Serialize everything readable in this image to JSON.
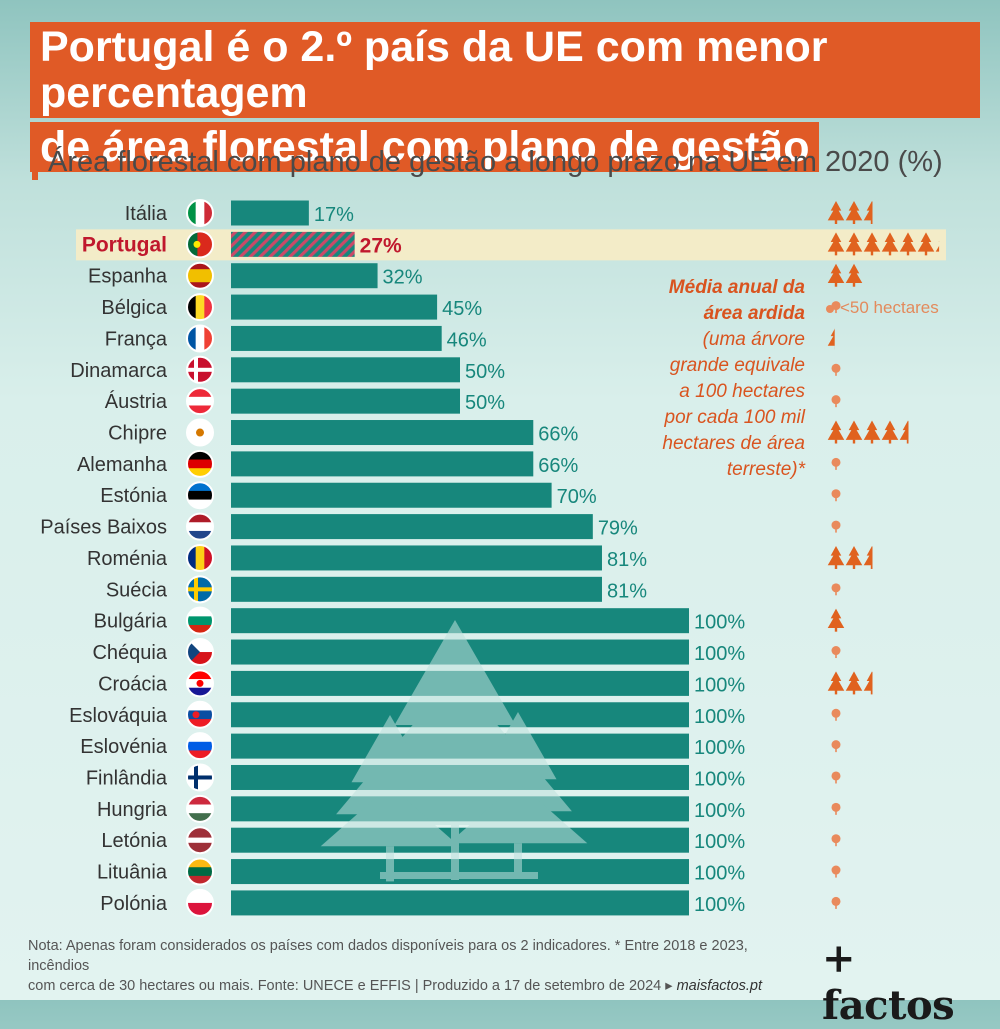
{
  "title": {
    "line1": "Portugal é o 2.º país da UE com menor percentagem",
    "line2": "de área florestal com plano de gestão"
  },
  "subtitle": "Área florestal com plano de gestão a longo prazo na UE em 2020 (%)",
  "side_note": {
    "head1": "Média anual da",
    "head2": "área ardida",
    "body": [
      "(uma árvore",
      "grande equivale",
      "a 100 hectares",
      "por cada 100 mil",
      "hectares de área",
      "terreste)*"
    ]
  },
  "legend_small": "<50 hectares",
  "footnote": {
    "line1": "Nota: Apenas foram considerados os países com dados disponíveis para os 2 indicadores. * Entre 2018 e 2023, incêndios",
    "line2": "com cerca de 30 hectares ou mais. Fonte: UNECE e EFFIS | Produzido a 17 de setembro de 2024 ▸",
    "site": "maisfactos.pt"
  },
  "logo": "+ factos",
  "colors": {
    "bar": "#17877c",
    "highlight_bar": "#17877c",
    "highlight_stripe": "#c94a68",
    "highlight_text": "#c0182d",
    "value_text": "#17877c",
    "tree": "#e0621f",
    "small_tree": "#e98a5c",
    "highlight_band": "#f3ecc8"
  },
  "chart_data": {
    "type": "bar",
    "orientation": "horizontal",
    "title": "Área florestal com plano de gestão a longo prazo na UE em 2020 (%)",
    "xlim": [
      0,
      100
    ],
    "value_suffix": "%",
    "highlight": "Portugal",
    "categories": [
      "Itália",
      "Portugal",
      "Espanha",
      "Bélgica",
      "França",
      "Dinamarca",
      "Áustria",
      "Chipre",
      "Alemanha",
      "Estónia",
      "Países Baixos",
      "Roménia",
      "Suécia",
      "Bulgária",
      "Chéquia",
      "Croácia",
      "Eslováquia",
      "Eslovénia",
      "Finlândia",
      "Hungria",
      "Letónia",
      "Lituânia",
      "Polónia"
    ],
    "values": [
      17,
      27,
      32,
      45,
      46,
      50,
      50,
      66,
      66,
      70,
      79,
      81,
      81,
      100,
      100,
      100,
      100,
      100,
      100,
      100,
      100,
      100,
      100
    ],
    "flags": [
      "it",
      "pt",
      "es",
      "be",
      "fr",
      "dk",
      "at",
      "cy",
      "de",
      "ee",
      "nl",
      "ro",
      "se",
      "bg",
      "cz",
      "hr",
      "sk",
      "si",
      "fi",
      "hu",
      "lv",
      "lt",
      "pl"
    ],
    "secondary_series": {
      "name": "Média anual da área ardida",
      "unit": "árvores (100 ha por 100 mil ha de área terrestre)",
      "values": [
        2.5,
        6.2,
        2,
        0,
        0.4,
        0,
        0,
        4.5,
        0,
        0,
        0,
        2.5,
        0,
        1,
        0,
        2.5,
        0,
        0,
        0,
        0,
        0,
        0,
        0
      ]
    }
  }
}
